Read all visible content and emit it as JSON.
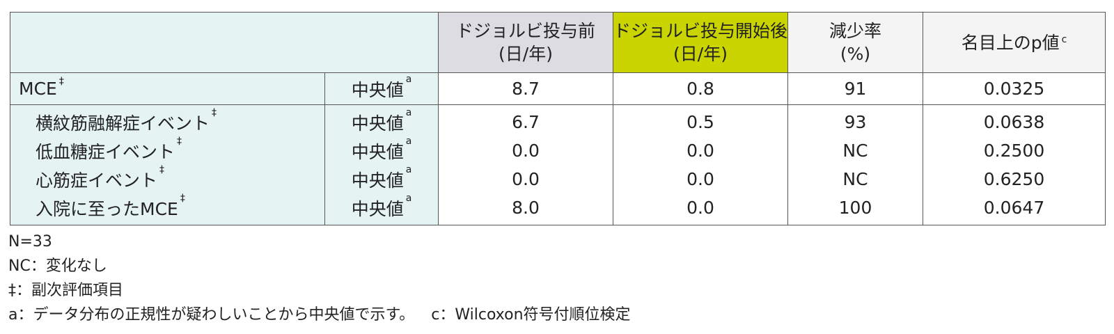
{
  "table": {
    "headers": [
      {
        "lines": [
          "ドジョルビ投与前",
          "(日/年)"
        ]
      },
      {
        "lines": [
          "ドジョルビ投与開始後",
          "(日/年)"
        ]
      },
      {
        "lines": [
          "減少率",
          "(%)"
        ]
      },
      {
        "lines": [
          "名目上のp値"
        ],
        "sup": "c"
      }
    ],
    "rows": [
      {
        "label": {
          "text": "MCE",
          "sup": "‡"
        },
        "stat": {
          "text": "中央値",
          "sup": "a"
        },
        "cells": [
          "8.7",
          "0.8",
          "91",
          "0.0325"
        ]
      },
      {
        "label": {
          "text": "横紋筋融解症イベント",
          "sup": "‡"
        },
        "stat": {
          "text": "中央値",
          "sup": "a"
        },
        "cells": [
          "6.7",
          "0.5",
          "93",
          "0.0638"
        ]
      },
      {
        "label": {
          "text": "低血糖症イベント",
          "sup": "‡"
        },
        "stat": {
          "text": "中央値",
          "sup": "a"
        },
        "cells": [
          "0.0",
          "0.0",
          "NC",
          "0.2500"
        ]
      },
      {
        "label": {
          "text": "心筋症イベント",
          "sup": "‡"
        },
        "stat": {
          "text": "中央値",
          "sup": "a"
        },
        "cells": [
          "0.0",
          "0.0",
          "NC",
          "0.6250"
        ]
      },
      {
        "label": {
          "text": "入院に至ったMCE",
          "sup": "‡"
        },
        "stat": {
          "text": "中央値",
          "sup": "a"
        },
        "cells": [
          "8.0",
          "0.0",
          "100",
          "0.0647"
        ]
      }
    ]
  },
  "notes": [
    [
      "N=33"
    ],
    [
      "NC：変化なし"
    ],
    [
      "‡：副次評価項目"
    ],
    [
      "a：データ分布の正規性が疑わしいことから中央値で示す。",
      "c：Wilcoxon符号付順位検定"
    ]
  ]
}
